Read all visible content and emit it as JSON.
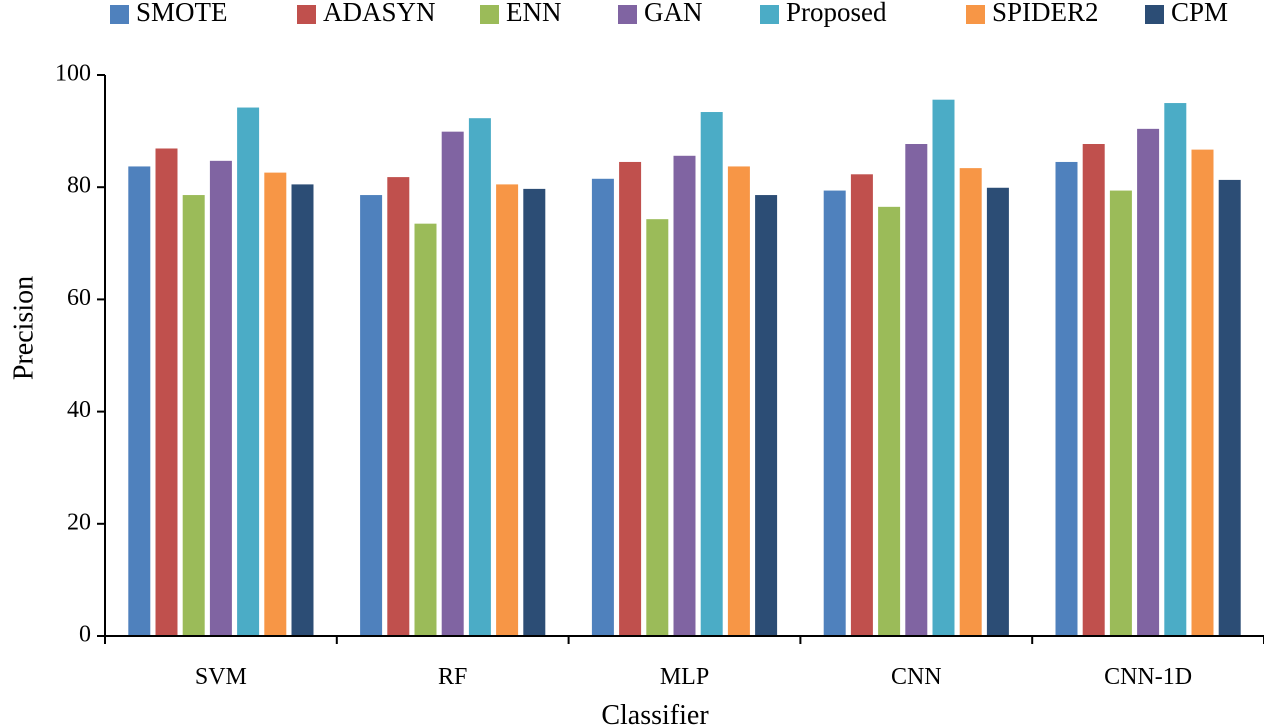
{
  "chart_data": {
    "type": "bar",
    "title": "",
    "xlabel": "Classifier",
    "ylabel": "Precision",
    "ylim": [
      0,
      100
    ],
    "yticks": [
      0,
      20,
      40,
      60,
      80,
      100
    ],
    "grid": false,
    "legend_position": "top",
    "categories": [
      "SVM",
      "RF",
      "MLP",
      "CNN",
      "CNN-1D"
    ],
    "series": [
      {
        "name": "SMOTE",
        "color": "#4F81BD",
        "values": [
          83.7,
          78.6,
          81.5,
          79.4,
          84.5
        ]
      },
      {
        "name": "ADASYN",
        "color": "#C0504D",
        "values": [
          86.9,
          81.8,
          84.5,
          82.3,
          87.7
        ]
      },
      {
        "name": "ENN",
        "color": "#9BBB59",
        "values": [
          78.6,
          73.5,
          74.3,
          76.5,
          79.4
        ]
      },
      {
        "name": "GAN",
        "color": "#8064A2",
        "values": [
          84.7,
          89.9,
          85.6,
          87.7,
          90.4
        ]
      },
      {
        "name": "Proposed",
        "color": "#4BACC6",
        "values": [
          94.2,
          92.3,
          93.4,
          95.6,
          95.0
        ]
      },
      {
        "name": "SPIDER2",
        "color": "#F79646",
        "values": [
          82.6,
          80.5,
          83.7,
          83.4,
          86.7
        ]
      },
      {
        "name": "CPM",
        "color": "#2C4D75",
        "values": [
          80.5,
          79.7,
          78.6,
          79.9,
          81.3
        ]
      }
    ]
  }
}
